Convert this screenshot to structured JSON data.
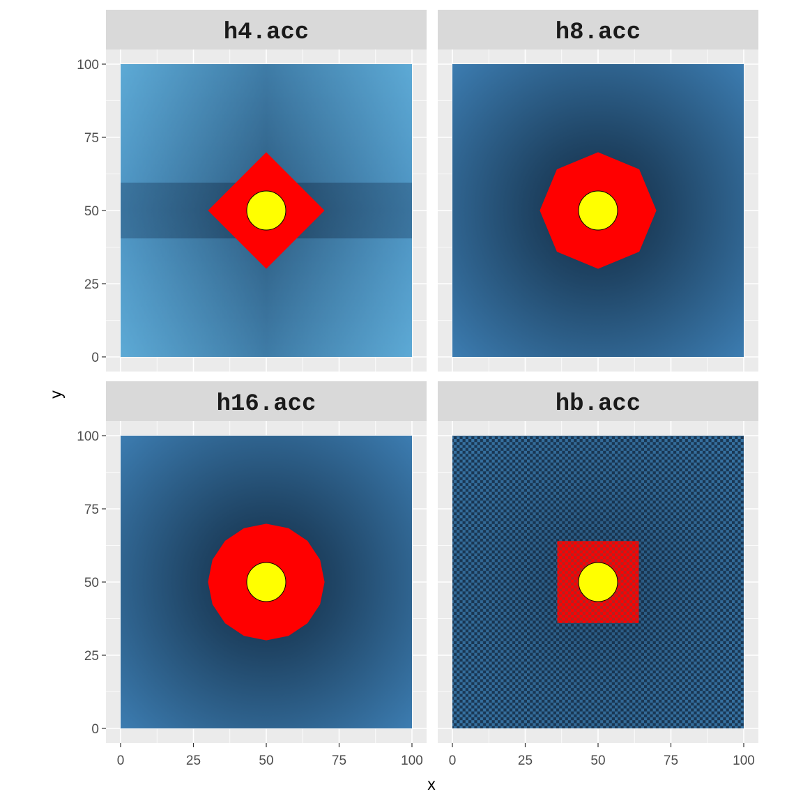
{
  "chart_data": {
    "type": "heatmap",
    "xlabel": "x",
    "ylabel": "y",
    "xlim": [
      0,
      100
    ],
    "ylim": [
      0,
      100
    ],
    "x_ticks": [
      0,
      25,
      50,
      75,
      100
    ],
    "y_ticks": [
      0,
      25,
      50,
      75,
      100
    ],
    "x_tick_labels": [
      "0",
      "25",
      "50",
      "75",
      "100"
    ],
    "y_tick_labels": [
      "0",
      "25",
      "50",
      "75",
      "100"
    ],
    "grid": true,
    "legend": "none",
    "colors": {
      "fill_low": "#132b43",
      "fill_high": "#56b1f7",
      "region": "#ff0000",
      "point": "#ffff00",
      "panel_bg": "#ebebeb",
      "strip_bg": "#d9d9d9"
    },
    "point": {
      "x": 50,
      "y": 50
    },
    "panels": [
      {
        "label": "h4.acc",
        "region_shape": "diamond",
        "region_radius": 20,
        "metric": "L1"
      },
      {
        "label": "h8.acc",
        "region_shape": "octagon",
        "region_radius": 20,
        "metric": "L8"
      },
      {
        "label": "h16.acc",
        "region_shape": "hexadecagon",
        "region_radius": 20,
        "metric": "L16"
      },
      {
        "label": "hb.acc",
        "region_shape": "checkerboard-square",
        "region_xrange": [
          36,
          64
        ],
        "region_yrange": [
          36,
          64
        ],
        "metric": "checker"
      }
    ]
  }
}
